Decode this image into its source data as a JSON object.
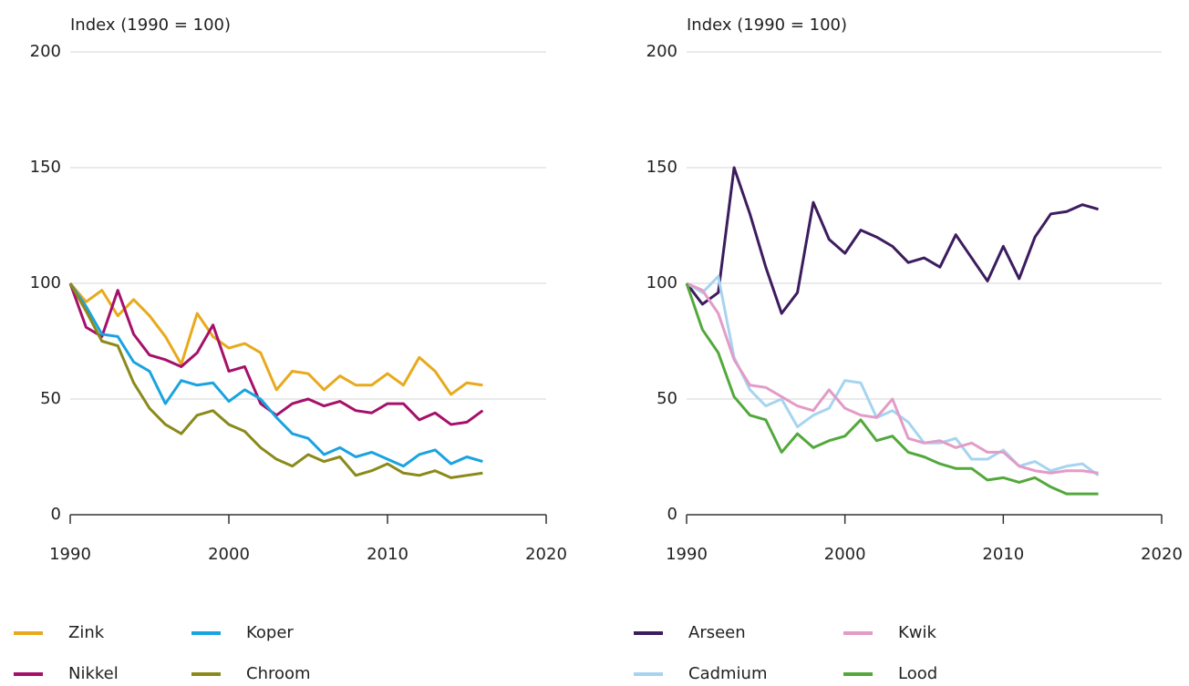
{
  "chart_data": [
    {
      "type": "line",
      "y_label": "Index (1990 = 100)",
      "x": [
        1990,
        1991,
        1992,
        1993,
        1994,
        1995,
        1996,
        1997,
        1998,
        1999,
        2000,
        2001,
        2002,
        2003,
        2004,
        2005,
        2006,
        2007,
        2008,
        2009,
        2010,
        2011,
        2012,
        2013,
        2014,
        2015,
        2016
      ],
      "series": [
        {
          "name": "Zink",
          "color": "#e8a91c",
          "values": [
            100,
            92,
            97,
            86,
            93,
            86,
            77,
            65,
            87,
            77,
            72,
            74,
            70,
            54,
            62,
            61,
            54,
            60,
            56,
            56,
            61,
            56,
            68,
            62,
            52,
            57,
            56
          ]
        },
        {
          "name": "Nikkel",
          "color": "#a5106a",
          "values": [
            100,
            81,
            77,
            97,
            78,
            69,
            67,
            64,
            70,
            82,
            62,
            64,
            48,
            43,
            48,
            50,
            47,
            49,
            45,
            44,
            48,
            48,
            41,
            44,
            39,
            40,
            45
          ]
        },
        {
          "name": "Koper",
          "color": "#1aa3e0",
          "values": [
            100,
            90,
            78,
            77,
            66,
            62,
            48,
            58,
            56,
            57,
            49,
            54,
            50,
            42,
            35,
            33,
            26,
            29,
            25,
            27,
            24,
            21,
            26,
            28,
            22,
            25,
            23
          ]
        },
        {
          "name": "Chroom",
          "color": "#8a8a1b",
          "values": [
            100,
            88,
            75,
            73,
            57,
            46,
            39,
            35,
            43,
            45,
            39,
            36,
            29,
            24,
            21,
            26,
            23,
            25,
            17,
            19,
            22,
            18,
            17,
            19,
            16,
            17,
            18
          ]
        }
      ],
      "xlim": [
        1990,
        2020
      ],
      "xticks": [
        1990,
        2000,
        2010,
        2020
      ],
      "ylim": [
        0,
        200
      ],
      "yticks": [
        0,
        50,
        100,
        150,
        200
      ],
      "grid": true
    },
    {
      "type": "line",
      "y_label": "Index (1990 = 100)",
      "x": [
        1990,
        1991,
        1992,
        1993,
        1994,
        1995,
        1996,
        1997,
        1998,
        1999,
        2000,
        2001,
        2002,
        2003,
        2004,
        2005,
        2006,
        2007,
        2008,
        2009,
        2010,
        2011,
        2012,
        2013,
        2014,
        2015,
        2016
      ],
      "series": [
        {
          "name": "Arseen",
          "color": "#3c1c5e",
          "values": [
            100,
            91,
            96,
            150,
            130,
            107,
            87,
            96,
            135,
            119,
            113,
            123,
            120,
            116,
            109,
            111,
            107,
            121,
            111,
            101,
            116,
            102,
            120,
            130,
            131,
            134,
            132
          ]
        },
        {
          "name": "Cadmium",
          "color": "#a6d4f0",
          "values": [
            100,
            96,
            103,
            68,
            54,
            47,
            50,
            38,
            43,
            46,
            58,
            57,
            42,
            45,
            40,
            31,
            31,
            33,
            24,
            24,
            28,
            21,
            23,
            19,
            21,
            22,
            17
          ]
        },
        {
          "name": "Kwik",
          "color": "#e39bc7",
          "values": [
            100,
            97,
            87,
            67,
            56,
            55,
            51,
            47,
            45,
            54,
            46,
            43,
            42,
            50,
            33,
            31,
            32,
            29,
            31,
            27,
            27,
            21,
            19,
            18,
            19,
            19,
            18
          ]
        },
        {
          "name": "Lood",
          "color": "#53a83c",
          "values": [
            100,
            80,
            70,
            51,
            43,
            41,
            27,
            35,
            29,
            32,
            34,
            41,
            32,
            34,
            27,
            25,
            22,
            20,
            20,
            15,
            16,
            14,
            16,
            12,
            9,
            9,
            9
          ]
        }
      ],
      "xlim": [
        1990,
        2020
      ],
      "xticks": [
        1990,
        2000,
        2010,
        2020
      ],
      "ylim": [
        0,
        200
      ],
      "yticks": [
        0,
        50,
        100,
        150,
        200
      ],
      "grid": true
    }
  ]
}
